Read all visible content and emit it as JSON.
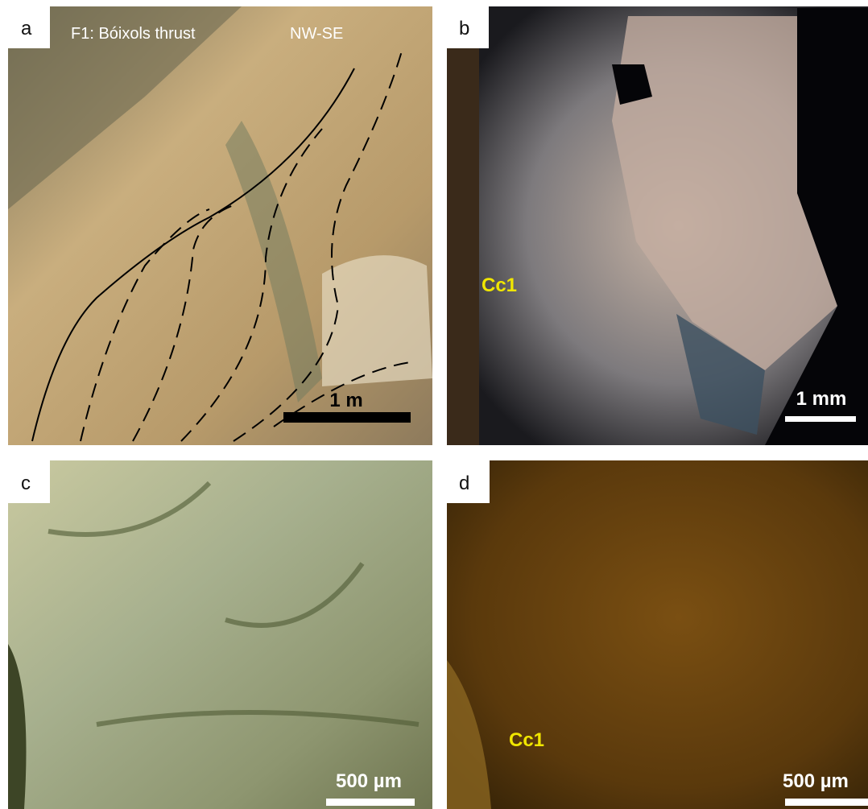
{
  "panels": [
    {
      "label": "a",
      "title": "F1: Bóixols thrust",
      "orientation": "NW-SE",
      "scale_bar": "1 m"
    },
    {
      "label": "b",
      "mineral": "Cc1",
      "scale_bar": "1 mm"
    },
    {
      "label": "c",
      "scale_bar": "500 µm"
    },
    {
      "label": "d",
      "mineral": "Cc1",
      "scale_bar": "500 µm"
    }
  ]
}
